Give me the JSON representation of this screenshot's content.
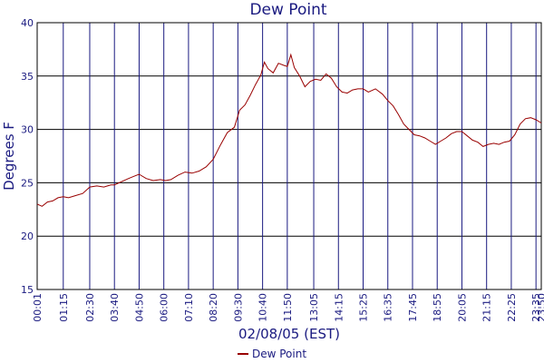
{
  "chart_data": {
    "type": "line",
    "title": "Dew Point",
    "xlabel": "02/08/05 (EST)",
    "ylabel": "Degrees F",
    "ylim": [
      15,
      40
    ],
    "yticks": [
      15,
      20,
      25,
      30,
      35,
      40
    ],
    "grid": true,
    "legend_position": "bottom",
    "x_tick_labels": [
      "00:01",
      "01:15",
      "02:30",
      "03:40",
      "04:50",
      "06:00",
      "07:10",
      "08:20",
      "09:30",
      "10:40",
      "11:50",
      "13:05",
      "14:15",
      "15:25",
      "16:35",
      "17:45",
      "18:55",
      "20:05",
      "21:15",
      "22:25",
      "23:35",
      "23:50"
    ],
    "x_tick_minutes": [
      1,
      75,
      150,
      220,
      290,
      360,
      430,
      500,
      570,
      640,
      710,
      785,
      855,
      925,
      995,
      1065,
      1135,
      1205,
      1275,
      1345,
      1415,
      1430
    ],
    "xlim_minutes": [
      1,
      1430
    ],
    "colors": {
      "line": "#990000",
      "frame": "#000000",
      "grid_vertical": "#1a1a80",
      "grid_horizontal": "#000000",
      "text": "#1a1a80"
    },
    "series": [
      {
        "name": "Dew Point",
        "x_minutes": [
          1,
          15,
          30,
          45,
          60,
          75,
          90,
          110,
          130,
          150,
          170,
          190,
          210,
          220,
          240,
          260,
          275,
          290,
          310,
          330,
          350,
          365,
          380,
          400,
          420,
          440,
          460,
          480,
          500,
          520,
          540,
          560,
          575,
          590,
          605,
          620,
          635,
          645,
          655,
          670,
          685,
          700,
          710,
          720,
          730,
          745,
          760,
          775,
          790,
          805,
          820,
          835,
          850,
          865,
          880,
          895,
          910,
          925,
          940,
          960,
          980,
          995,
          1010,
          1025,
          1040,
          1055,
          1070,
          1085,
          1100,
          1115,
          1130,
          1145,
          1160,
          1175,
          1190,
          1205,
          1220,
          1235,
          1250,
          1265,
          1280,
          1295,
          1310,
          1325,
          1340,
          1355,
          1370,
          1385,
          1400,
          1415,
          1430
        ],
        "values": [
          23.0,
          22.8,
          23.2,
          23.3,
          23.6,
          23.7,
          23.6,
          23.8,
          24.0,
          24.6,
          24.7,
          24.6,
          24.8,
          24.8,
          25.1,
          25.4,
          25.6,
          25.8,
          25.4,
          25.2,
          25.3,
          25.2,
          25.3,
          25.7,
          26.0,
          25.9,
          26.1,
          26.5,
          27.2,
          28.5,
          29.7,
          30.2,
          31.8,
          32.3,
          33.2,
          34.2,
          35.1,
          36.3,
          35.7,
          35.3,
          36.2,
          36.0,
          35.9,
          37.0,
          35.8,
          35.0,
          34.0,
          34.5,
          34.7,
          34.6,
          35.2,
          34.8,
          34.0,
          33.5,
          33.4,
          33.7,
          33.8,
          33.8,
          33.5,
          33.8,
          33.3,
          32.7,
          32.2,
          31.4,
          30.5,
          30.0,
          29.5,
          29.4,
          29.2,
          28.9,
          28.6,
          28.9,
          29.2,
          29.6,
          29.8,
          29.8,
          29.4,
          29.0,
          28.8,
          28.4,
          28.6,
          28.7,
          28.6,
          28.8,
          28.9,
          29.5,
          30.5,
          31.0,
          31.1,
          30.9,
          30.6
        ]
      }
    ]
  }
}
